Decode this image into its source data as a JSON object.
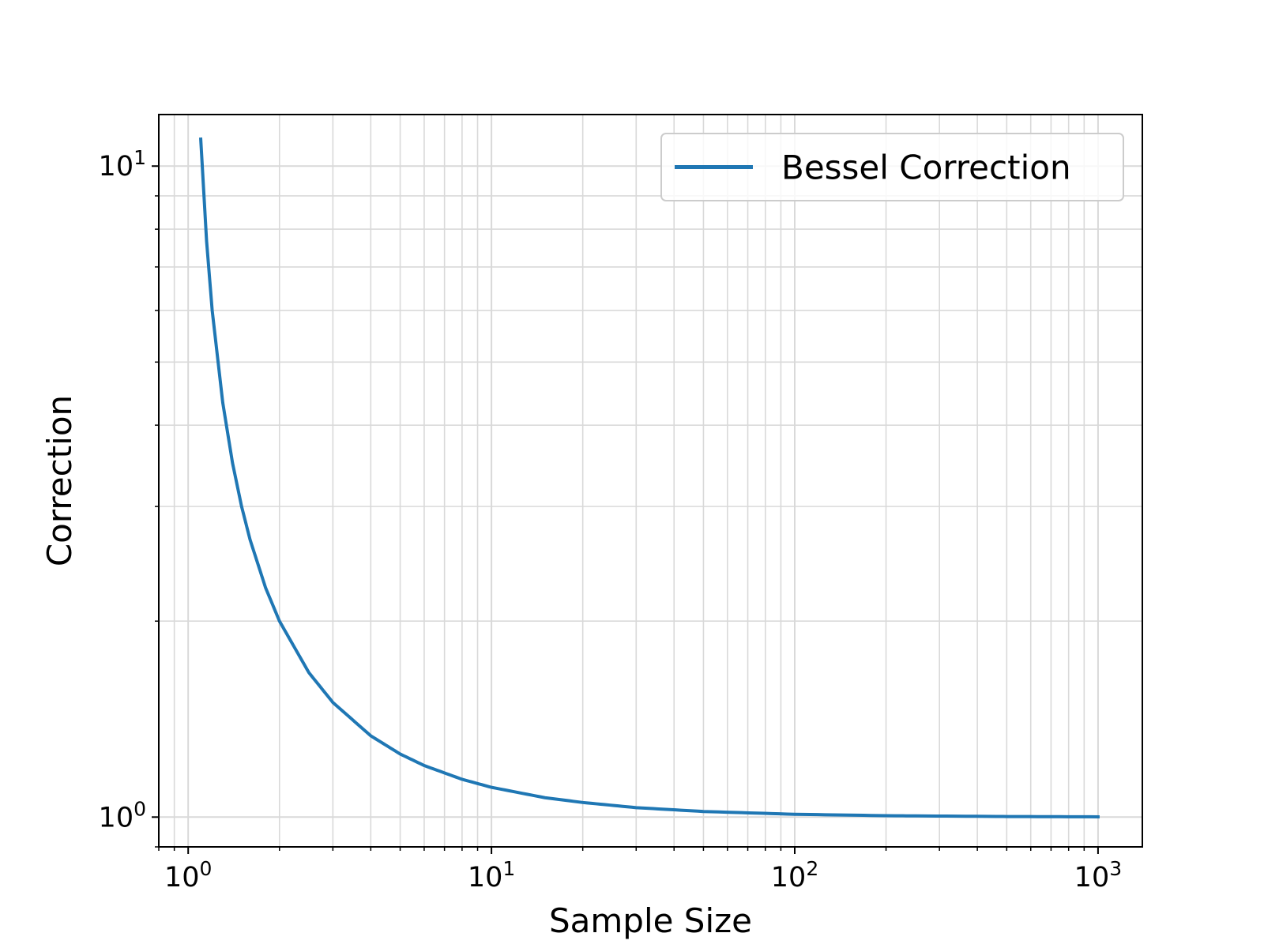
{
  "chart_data": {
    "type": "line",
    "title": "",
    "xlabel": "Sample Size",
    "ylabel": "Correction",
    "xscale": "log",
    "yscale": "log",
    "xlim": [
      0.8,
      1400
    ],
    "ylim": [
      0.9,
      12
    ],
    "grid": true,
    "grid_minor": true,
    "legend_position": "top-right",
    "x_ticks": [
      {
        "base": "10",
        "exp": "0",
        "value": 1
      },
      {
        "base": "10",
        "exp": "1",
        "value": 10
      },
      {
        "base": "10",
        "exp": "2",
        "value": 100
      },
      {
        "base": "10",
        "exp": "3",
        "value": 1000
      }
    ],
    "y_ticks": [
      {
        "base": "10",
        "exp": "0",
        "value": 1
      },
      {
        "base": "10",
        "exp": "1",
        "value": 10
      }
    ],
    "series": [
      {
        "name": "Bessel Correction",
        "color": "#1f77b4",
        "x": [
          1.1,
          1.15,
          1.2,
          1.3,
          1.4,
          1.5,
          1.6,
          1.8,
          2,
          2.5,
          3,
          4,
          5,
          6,
          8,
          10,
          15,
          20,
          30,
          50,
          100,
          200,
          500,
          1000
        ],
        "y": [
          11.0,
          7.667,
          6.0,
          4.333,
          3.5,
          3.0,
          2.667,
          2.25,
          2.0,
          1.667,
          1.5,
          1.333,
          1.25,
          1.2,
          1.143,
          1.111,
          1.071,
          1.053,
          1.034,
          1.02,
          1.01,
          1.005,
          1.002,
          1.001
        ]
      }
    ]
  }
}
